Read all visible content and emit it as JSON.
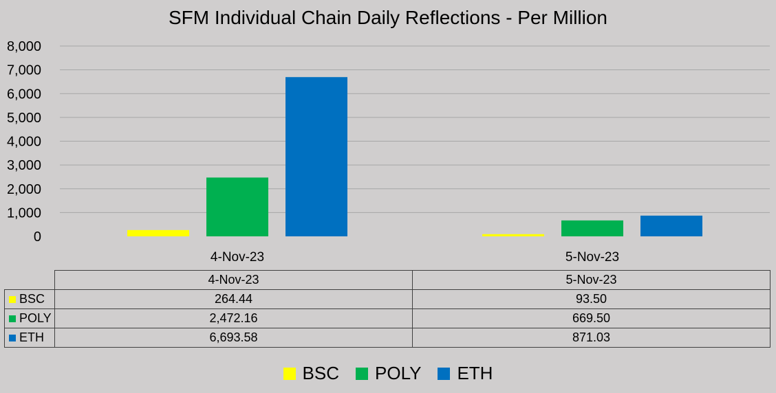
{
  "chart_data": {
    "type": "bar",
    "title": "SFM Individual Chain Daily Reflections - Per Million",
    "categories": [
      "4-Nov-23",
      "5-Nov-23"
    ],
    "series": [
      {
        "name": "BSC",
        "color": "#ffff00",
        "values": [
          264.44,
          93.5
        ],
        "display": [
          "264.44",
          "93.50"
        ]
      },
      {
        "name": "POLY",
        "color": "#00b050",
        "values": [
          2472.16,
          669.5
        ],
        "display": [
          "2,472.16",
          "669.50"
        ]
      },
      {
        "name": "ETH",
        "color": "#0070c0",
        "values": [
          6693.58,
          871.03
        ],
        "display": [
          "6,693.58",
          "871.03"
        ]
      }
    ],
    "yticks": [
      "0",
      "1,000",
      "2,000",
      "3,000",
      "4,000",
      "5,000",
      "6,000",
      "7,000",
      "8,000"
    ],
    "ylim": [
      0,
      8000
    ],
    "grid": true,
    "legend": "bottom",
    "data_table": true
  }
}
